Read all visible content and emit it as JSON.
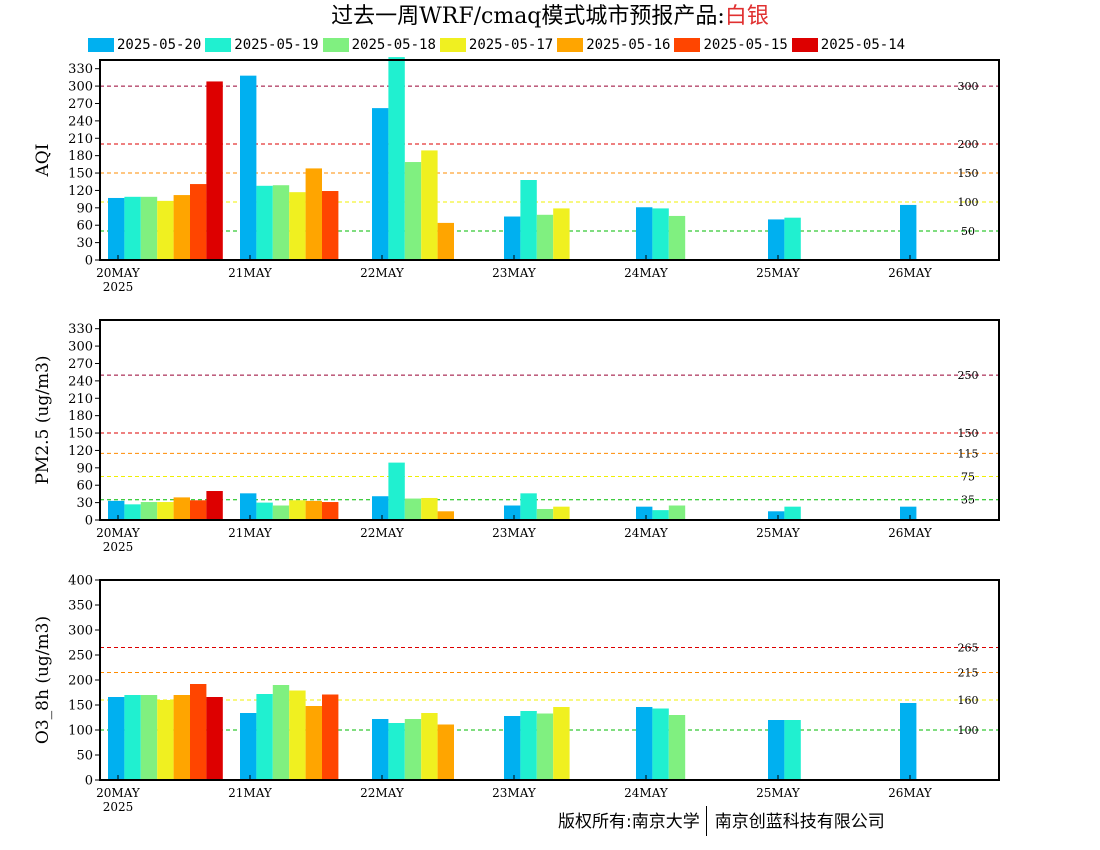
{
  "title": {
    "main": "过去一周WRF/cmaq模式城市预报产品:",
    "city": "白银",
    "city_color": "#e03030"
  },
  "copyright": {
    "left": "版权所有:南京大学",
    "right": "南京创蓝科技有限公司"
  },
  "chart_data": [
    {
      "type": "bar",
      "ylabel": "AQI",
      "ylim": [
        0,
        345
      ],
      "yticks": [
        0,
        30,
        60,
        90,
        120,
        150,
        180,
        210,
        240,
        270,
        300,
        330
      ],
      "categories": [
        "20MAY\n2025",
        "21MAY",
        "22MAY",
        "23MAY",
        "24MAY",
        "25MAY",
        "26MAY"
      ],
      "thresholds": [
        {
          "value": 50,
          "label": "50",
          "color": "#00bb00"
        },
        {
          "value": 100,
          "label": "100",
          "color": "#f0f000"
        },
        {
          "value": 150,
          "label": "150",
          "color": "#ff8c00"
        },
        {
          "value": 200,
          "label": "200",
          "color": "#dd0000"
        },
        {
          "value": 300,
          "label": "300",
          "color": "#990033"
        }
      ],
      "series": [
        {
          "name": "2025-05-20",
          "color": "#00b0f0",
          "values": [
            107,
            318,
            262,
            75,
            91,
            70,
            95
          ]
        },
        {
          "name": "2025-05-19",
          "color": "#20f0d0",
          "values": [
            109,
            128,
            350,
            138,
            89,
            73,
            null
          ]
        },
        {
          "name": "2025-05-18",
          "color": "#80f080",
          "values": [
            109,
            129,
            169,
            78,
            76,
            null,
            null
          ]
        },
        {
          "name": "2025-05-17",
          "color": "#f0f020",
          "values": [
            102,
            117,
            189,
            89,
            null,
            null,
            null
          ]
        },
        {
          "name": "2025-05-16",
          "color": "#ffa500",
          "values": [
            112,
            158,
            64,
            null,
            null,
            null,
            null
          ]
        },
        {
          "name": "2025-05-15",
          "color": "#ff4500",
          "values": [
            131,
            119,
            null,
            null,
            null,
            null,
            null
          ]
        },
        {
          "name": "2025-05-14",
          "color": "#dd0000",
          "values": [
            308,
            null,
            null,
            null,
            null,
            null,
            null
          ]
        }
      ]
    },
    {
      "type": "bar",
      "ylabel": "PM2.5 (ug/m3)",
      "ylim": [
        0,
        345
      ],
      "yticks": [
        0,
        30,
        60,
        90,
        120,
        150,
        180,
        210,
        240,
        270,
        300,
        330
      ],
      "categories": [
        "20MAY\n2025",
        "21MAY",
        "22MAY",
        "23MAY",
        "24MAY",
        "25MAY",
        "26MAY"
      ],
      "thresholds": [
        {
          "value": 35,
          "label": "35",
          "color": "#00bb00"
        },
        {
          "value": 75,
          "label": "75",
          "color": "#f0f000"
        },
        {
          "value": 115,
          "label": "115",
          "color": "#ff8c00"
        },
        {
          "value": 150,
          "label": "150",
          "color": "#dd0000"
        },
        {
          "value": 250,
          "label": "250",
          "color": "#990033"
        }
      ],
      "series": [
        {
          "name": "2025-05-20",
          "color": "#00b0f0",
          "values": [
            33,
            46,
            41,
            25,
            23,
            15,
            23
          ]
        },
        {
          "name": "2025-05-19",
          "color": "#20f0d0",
          "values": [
            27,
            30,
            99,
            46,
            17,
            23,
            null
          ]
        },
        {
          "name": "2025-05-18",
          "color": "#80f080",
          "values": [
            31,
            25,
            37,
            19,
            25,
            null,
            null
          ]
        },
        {
          "name": "2025-05-17",
          "color": "#f0f020",
          "values": [
            31,
            34,
            38,
            23,
            null,
            null,
            null
          ]
        },
        {
          "name": "2025-05-16",
          "color": "#ffa500",
          "values": [
            39,
            33,
            15,
            null,
            null,
            null,
            null
          ]
        },
        {
          "name": "2025-05-15",
          "color": "#ff4500",
          "values": [
            34,
            31,
            null,
            null,
            null,
            null,
            null
          ]
        },
        {
          "name": "2025-05-14",
          "color": "#dd0000",
          "values": [
            50,
            null,
            null,
            null,
            null,
            null,
            null
          ]
        }
      ]
    },
    {
      "type": "bar",
      "ylabel": "O3_8h (ug/m3)",
      "ylim": [
        0,
        400
      ],
      "yticks": [
        0,
        50,
        100,
        150,
        200,
        250,
        300,
        350,
        400
      ],
      "categories": [
        "20MAY\n2025",
        "21MAY",
        "22MAY",
        "23MAY",
        "24MAY",
        "25MAY",
        "26MAY"
      ],
      "thresholds": [
        {
          "value": 100,
          "label": "100",
          "color": "#00bb00"
        },
        {
          "value": 160,
          "label": "160",
          "color": "#f0f000"
        },
        {
          "value": 215,
          "label": "215",
          "color": "#ff8c00"
        },
        {
          "value": 265,
          "label": "265",
          "color": "#dd0000"
        }
      ],
      "series": [
        {
          "name": "2025-05-20",
          "color": "#00b0f0",
          "values": [
            166,
            134,
            122,
            128,
            146,
            120,
            154
          ]
        },
        {
          "name": "2025-05-19",
          "color": "#20f0d0",
          "values": [
            170,
            172,
            114,
            138,
            143,
            120,
            null
          ]
        },
        {
          "name": "2025-05-18",
          "color": "#80f080",
          "values": [
            170,
            190,
            122,
            133,
            130,
            null,
            null
          ]
        },
        {
          "name": "2025-05-17",
          "color": "#f0f020",
          "values": [
            160,
            179,
            134,
            146,
            null,
            null,
            null
          ]
        },
        {
          "name": "2025-05-16",
          "color": "#ffa500",
          "values": [
            170,
            148,
            111,
            null,
            null,
            null,
            null
          ]
        },
        {
          "name": "2025-05-15",
          "color": "#ff4500",
          "values": [
            192,
            171,
            null,
            null,
            null,
            null,
            null
          ]
        },
        {
          "name": "2025-05-14",
          "color": "#dd0000",
          "values": [
            166,
            null,
            null,
            null,
            null,
            null,
            null
          ]
        }
      ]
    }
  ]
}
